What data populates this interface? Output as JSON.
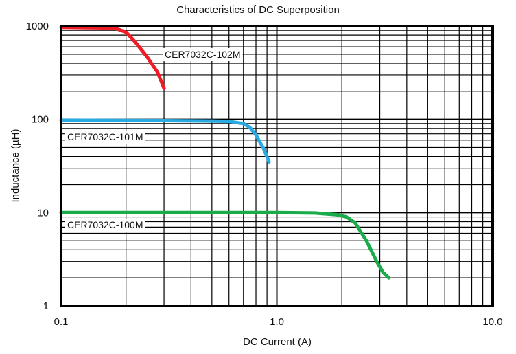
{
  "chart_data": {
    "type": "line",
    "title": "Characteristics of DC Superposition",
    "xlabel": "DC Current (A)",
    "ylabel": "Inductance (µH)",
    "xscale": "log",
    "yscale": "log",
    "xlim": [
      0.1,
      10.0
    ],
    "ylim": [
      1,
      1000
    ],
    "grid": true,
    "x_tick_labels": [
      {
        "value": 0.1,
        "label": "0.1"
      },
      {
        "value": 1.0,
        "label": "1.0"
      },
      {
        "value": 10.0,
        "label": "10.0"
      }
    ],
    "y_tick_labels": [
      {
        "value": 1,
        "label": "1"
      },
      {
        "value": 10,
        "label": "10"
      },
      {
        "value": 100,
        "label": "100"
      },
      {
        "value": 1000,
        "label": "1000"
      }
    ],
    "series": [
      {
        "name": "CER7032C-102M",
        "color": "#ee1c25",
        "x": [
          0.1,
          0.15,
          0.18,
          0.2,
          0.22,
          0.25,
          0.28,
          0.3
        ],
        "y": [
          970,
          960,
          940,
          860,
          680,
          470,
          320,
          215
        ]
      },
      {
        "name": "CER7032C-101M",
        "color": "#29abe2",
        "x": [
          0.1,
          0.3,
          0.5,
          0.6,
          0.7,
          0.75,
          0.8,
          0.87,
          0.92
        ],
        "y": [
          98,
          97,
          96,
          95,
          90,
          82,
          68,
          48,
          35
        ]
      },
      {
        "name": "CER7032C-100M",
        "color": "#1aab4b",
        "x": [
          0.1,
          1.0,
          1.5,
          1.9,
          2.1,
          2.3,
          2.6,
          2.9,
          3.1,
          3.3
        ],
        "y": [
          10,
          10,
          9.9,
          9.5,
          9.0,
          7.8,
          5.0,
          3.0,
          2.3,
          2.0
        ]
      }
    ]
  }
}
